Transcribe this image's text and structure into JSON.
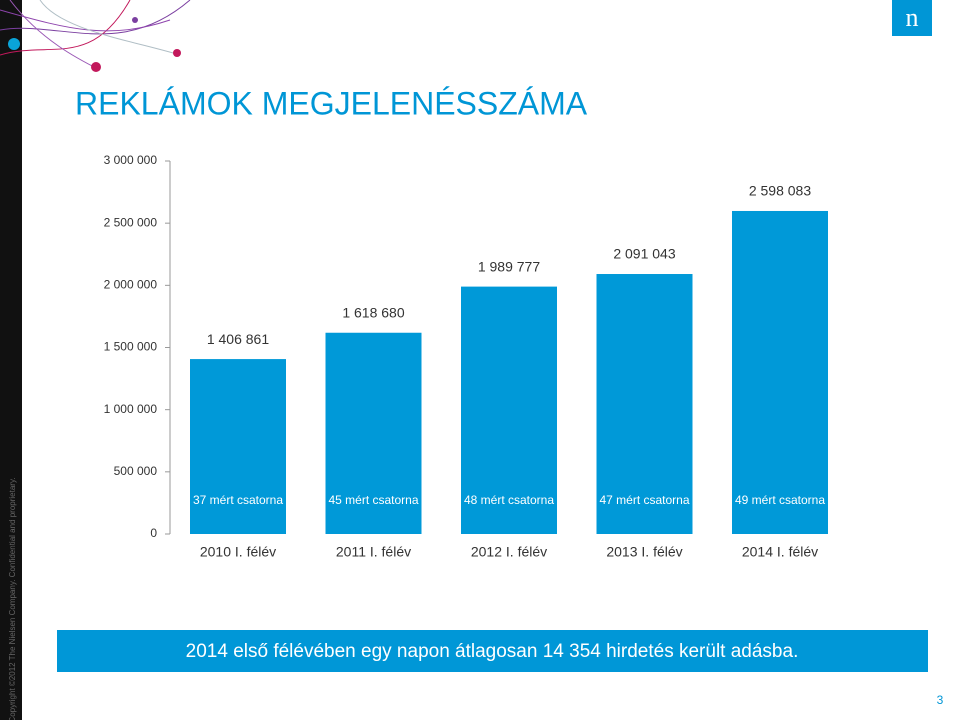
{
  "header": {
    "title": "REKLÁMOK MEGJELENÉSSZÁMA",
    "logo": "n"
  },
  "chart_data": {
    "type": "bar",
    "categories": [
      "2010 I. félév",
      "2011 I. félév",
      "2012 I. félév",
      "2013 I. félév",
      "2014 I. félév"
    ],
    "values": [
      1406861,
      1618680,
      1989777,
      2091043,
      2598083
    ],
    "value_labels": [
      "1 406 861",
      "1 618 680",
      "1 989 777",
      "2 091 043",
      "2 598 083"
    ],
    "bar_notes": [
      "37 mért csatorna",
      "45 mért csatorna",
      "48 mért csatorna",
      "47 mért csatorna",
      "49 mért csatorna"
    ],
    "color": "#0099d8",
    "ylim": [
      0,
      3000000
    ],
    "yticks": [
      0,
      {
        "value": 500000,
        "label": "500 000"
      },
      {
        "value": 1000000,
        "label": "1 000 000"
      },
      {
        "value": 1500000,
        "label": "1 500 000"
      },
      {
        "value": 2000000,
        "label": "2 000 000"
      },
      {
        "value": 2500000,
        "label": "2 500 000"
      },
      {
        "value": 3000000,
        "label": "3 000 000"
      }
    ],
    "grid": false
  },
  "footer": {
    "summary": "2014 első félévében egy napon átlagosan 14 354 hirdetés került adásba.",
    "copyright": "Copyright ©2012 The Nielsen Company. Confidential and proprietary.",
    "page_number": "3"
  }
}
